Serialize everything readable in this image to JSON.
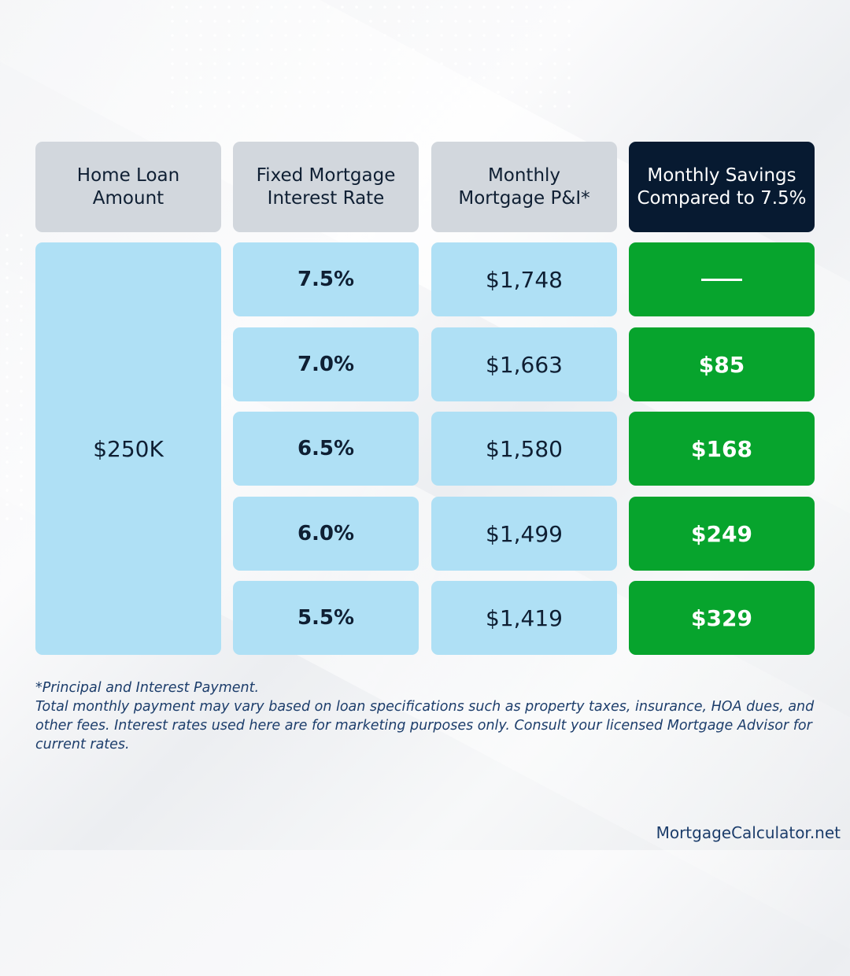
{
  "headers": {
    "loan_amount": "Home Loan\nAmount",
    "interest_rate": "Fixed Mortgage\nInterest Rate",
    "monthly_payment": "Monthly\nMortgage P&I*",
    "savings": "Monthly Savings\nCompared to 7.5%"
  },
  "loan_amount": "$250K",
  "rows": [
    {
      "rate": "7.5%",
      "payment": "$1,748",
      "savings": "—"
    },
    {
      "rate": "7.0%",
      "payment": "$1,663",
      "savings": "$85"
    },
    {
      "rate": "6.5%",
      "payment": "$1,580",
      "savings": "$168"
    },
    {
      "rate": "6.0%",
      "payment": "$1,499",
      "savings": "$249"
    },
    {
      "rate": "5.5%",
      "payment": "$1,419",
      "savings": "$329"
    }
  ],
  "footnote": {
    "line1": "*Principal and Interest Payment.",
    "line2": "Total monthly payment may vary based on loan specifications such as property taxes, insurance, HOA dues, and other fees. Interest rates used here are for marketing purposes only. Consult your licensed Mortgage Advisor for current rates."
  },
  "brand": "MortgageCalculator.net",
  "colors": {
    "header_bg": "#d2d7dd",
    "header_dark_bg": "#071a31",
    "cell_blue": "#afe0f5",
    "savings_green": "#07a42d",
    "text_navy": "#0f1f33",
    "footnote_blue": "#1c3d6b"
  }
}
